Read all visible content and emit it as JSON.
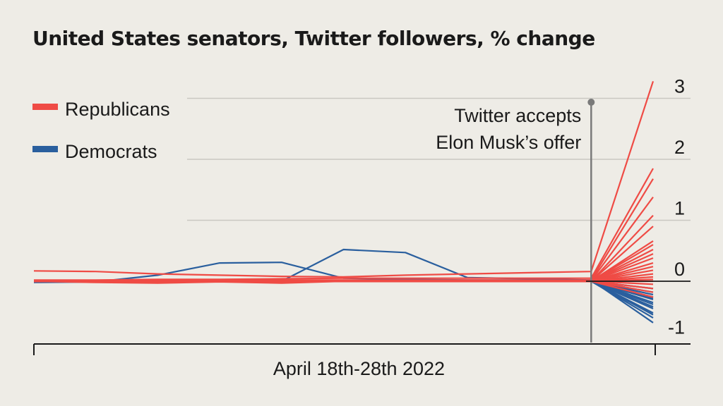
{
  "chart_data": {
    "type": "line",
    "title": "United States senators, Twitter followers, % change",
    "xlabel": "April 18th-28th 2022",
    "ylabel": "",
    "x": [
      0,
      1,
      2,
      3,
      4,
      5,
      6,
      7,
      8,
      9,
      10
    ],
    "xlim": [
      0,
      10
    ],
    "ylim": [
      -1,
      3
    ],
    "yticks": [
      -1,
      0,
      1,
      2,
      3
    ],
    "ytick_labels": [
      "-1",
      "0",
      "1",
      "2",
      "3"
    ],
    "grid": true,
    "y_axis_position": "right",
    "legend": {
      "placement": "top-left",
      "entries": [
        {
          "label": "Republicans",
          "color": "#ef4b45"
        },
        {
          "label": "Democrats",
          "color": "#2a5f9e"
        }
      ]
    },
    "annotation": {
      "lines": [
        "Twitter accepts",
        "Elon Musk’s offer"
      ],
      "x": 9,
      "color": "#7a7a7a"
    },
    "colors": {
      "republicans": "#ef4b45",
      "democrats": "#2a5f9e",
      "grid": "#c9c7c1",
      "axis": "#1a1a1a"
    },
    "democrats": [
      {
        "values": [
          -0.02,
          -0.01,
          0.1,
          0.3,
          0.31,
          0.05,
          0.03,
          0.02,
          0.02,
          0.02,
          -0.28
        ]
      },
      {
        "values": [
          0.0,
          0.0,
          0.0,
          0.0,
          0.0,
          0.52,
          0.47,
          0.06,
          0.04,
          0.02,
          -0.68
        ]
      },
      {
        "values": [
          -0.01,
          0.0,
          0.01,
          0.01,
          0.01,
          0.01,
          0.0,
          0.0,
          0.0,
          0.0,
          -0.42
        ]
      },
      {
        "values": [
          0.0,
          0.0,
          0.0,
          0.0,
          0.0,
          0.0,
          0.0,
          0.0,
          0.0,
          0.0,
          -0.52
        ]
      },
      {
        "values": [
          0.0,
          0.0,
          0.0,
          0.0,
          0.0,
          0.0,
          0.0,
          0.0,
          0.0,
          0.0,
          -0.6
        ]
      },
      {
        "values": [
          0.0,
          0.0,
          0.0,
          0.0,
          0.0,
          0.0,
          0.0,
          0.0,
          0.0,
          0.0,
          -0.35
        ]
      },
      {
        "values": [
          0.0,
          0.0,
          0.0,
          0.0,
          0.0,
          0.0,
          0.0,
          0.0,
          0.0,
          0.0,
          -0.3
        ]
      },
      {
        "values": [
          0.0,
          0.0,
          0.0,
          0.0,
          0.0,
          0.0,
          0.0,
          0.0,
          0.0,
          0.0,
          -0.22
        ]
      },
      {
        "values": [
          0.0,
          0.0,
          0.0,
          0.0,
          0.0,
          0.0,
          0.0,
          0.0,
          0.0,
          0.0,
          -0.18
        ]
      },
      {
        "values": [
          0.0,
          0.0,
          0.0,
          0.0,
          0.0,
          0.0,
          0.0,
          0.0,
          0.0,
          0.0,
          -0.12
        ]
      },
      {
        "values": [
          0.0,
          0.0,
          0.0,
          0.0,
          0.0,
          0.0,
          0.0,
          0.0,
          0.0,
          0.0,
          -0.45
        ]
      },
      {
        "values": [
          0.0,
          0.0,
          0.0,
          0.0,
          0.0,
          0.0,
          0.0,
          0.0,
          0.0,
          0.0,
          -0.55
        ]
      },
      {
        "values": [
          0.0,
          0.0,
          0.0,
          0.0,
          0.0,
          0.0,
          0.0,
          0.0,
          0.0,
          0.0,
          -0.38
        ]
      },
      {
        "values": [
          0.0,
          0.0,
          0.0,
          0.0,
          0.0,
          0.0,
          0.0,
          0.0,
          0.0,
          0.0,
          -0.26
        ]
      }
    ],
    "republicans": [
      {
        "values": [
          0.17,
          0.16,
          0.12,
          0.1,
          0.08,
          0.07,
          0.1,
          0.12,
          0.14,
          0.16,
          3.28
        ]
      },
      {
        "values": [
          0.02,
          0.02,
          0.03,
          0.03,
          0.04,
          0.05,
          0.05,
          0.05,
          0.05,
          0.05,
          1.85
        ]
      },
      {
        "values": [
          0.0,
          0.01,
          0.01,
          0.02,
          0.02,
          0.02,
          0.02,
          0.02,
          0.02,
          0.02,
          1.68
        ]
      },
      {
        "values": [
          0.0,
          0.0,
          0.01,
          0.01,
          0.01,
          0.01,
          0.01,
          0.01,
          0.01,
          0.01,
          1.38
        ]
      },
      {
        "values": [
          0.0,
          0.0,
          0.0,
          0.0,
          0.0,
          0.0,
          0.0,
          0.0,
          0.0,
          0.0,
          1.08
        ]
      },
      {
        "values": [
          0.0,
          -0.02,
          -0.03,
          -0.01,
          -0.03,
          0.0,
          0.0,
          0.0,
          0.0,
          0.0,
          0.9
        ]
      },
      {
        "values": [
          0.0,
          0.0,
          0.0,
          0.0,
          0.0,
          0.0,
          0.0,
          0.0,
          0.0,
          0.0,
          0.66
        ]
      },
      {
        "values": [
          0.0,
          0.0,
          0.0,
          0.0,
          0.0,
          0.0,
          0.0,
          0.0,
          0.0,
          0.0,
          0.6
        ]
      },
      {
        "values": [
          0.0,
          0.0,
          0.0,
          0.0,
          0.0,
          0.0,
          0.0,
          0.0,
          0.0,
          0.0,
          0.52
        ]
      },
      {
        "values": [
          0.0,
          0.0,
          0.0,
          0.0,
          0.0,
          0.0,
          0.0,
          0.0,
          0.0,
          0.0,
          0.45
        ]
      },
      {
        "values": [
          0.0,
          0.0,
          0.0,
          0.0,
          0.0,
          0.0,
          0.0,
          0.0,
          0.0,
          0.0,
          0.38
        ]
      },
      {
        "values": [
          0.0,
          0.0,
          0.0,
          0.0,
          0.0,
          0.0,
          0.0,
          0.0,
          0.0,
          0.0,
          0.3
        ]
      },
      {
        "values": [
          0.0,
          0.0,
          0.0,
          0.0,
          0.0,
          0.0,
          0.0,
          0.0,
          0.0,
          0.0,
          0.24
        ]
      },
      {
        "values": [
          0.0,
          0.0,
          0.0,
          0.0,
          0.0,
          0.0,
          0.0,
          0.0,
          0.0,
          0.0,
          0.18
        ]
      },
      {
        "values": [
          0.0,
          0.0,
          0.0,
          0.0,
          0.0,
          0.0,
          0.0,
          0.0,
          0.0,
          0.0,
          0.12
        ]
      },
      {
        "values": [
          0.0,
          0.0,
          0.0,
          0.0,
          0.0,
          0.0,
          0.0,
          0.0,
          0.0,
          0.0,
          0.07
        ]
      },
      {
        "values": [
          0.0,
          0.0,
          0.0,
          0.0,
          0.0,
          0.0,
          0.0,
          0.0,
          0.0,
          0.0,
          0.03
        ]
      },
      {
        "values": [
          0.0,
          0.0,
          0.0,
          0.0,
          0.0,
          0.0,
          0.0,
          0.0,
          0.0,
          0.0,
          0.0
        ]
      },
      {
        "values": [
          0.0,
          0.0,
          0.0,
          0.0,
          0.0,
          0.0,
          0.0,
          0.0,
          0.0,
          0.0,
          -0.05
        ]
      },
      {
        "values": [
          0.0,
          0.0,
          0.0,
          0.0,
          0.0,
          0.0,
          0.0,
          0.0,
          0.0,
          0.0,
          -0.12
        ]
      },
      {
        "values": [
          0.0,
          0.0,
          0.0,
          0.0,
          0.0,
          0.0,
          0.0,
          0.0,
          0.0,
          0.0,
          -0.18
        ]
      },
      {
        "values": [
          0.0,
          0.0,
          0.0,
          0.0,
          0.0,
          0.0,
          0.0,
          0.0,
          0.0,
          0.0,
          -0.26
        ]
      }
    ]
  }
}
